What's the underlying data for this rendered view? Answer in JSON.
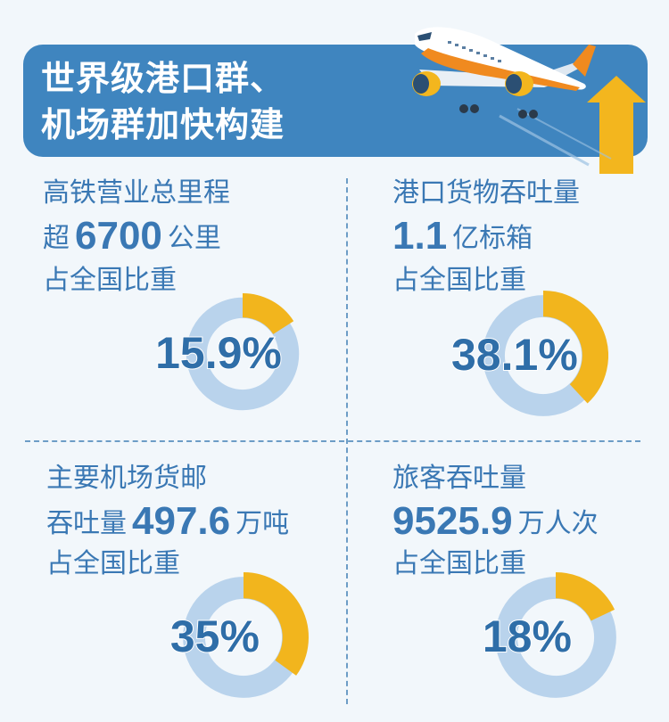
{
  "banner": {
    "title_line1": "世界级港口群、",
    "title_line2": "机场群加快构建"
  },
  "panels": [
    {
      "label": "高铁营业总里程",
      "prefix": "超",
      "number": "6700",
      "unit": "公里",
      "share_label": "占全国比重",
      "percent_text": "15.9%",
      "percent_value": 15.9
    },
    {
      "label": "港口货物吞吐量",
      "prefix": "",
      "number": "1.1",
      "unit": "亿标箱",
      "share_label": "占全国比重",
      "percent_text": "38.1%",
      "percent_value": 38.1
    },
    {
      "label": "主要机场货邮",
      "prefix": "吞吐量",
      "number": "497.6",
      "unit": "万吨",
      "share_label": "占全国比重",
      "percent_text": "35%",
      "percent_value": 35
    },
    {
      "label": "旅客吞吐量",
      "prefix": "",
      "number": "9525.9",
      "unit": "万人次",
      "share_label": "占全国比重",
      "percent_text": "18%",
      "percent_value": 18
    }
  ],
  "colors": {
    "banner": "#3f85bf",
    "text_blue": "#3a78b4",
    "ring_track": "#b9d3ec",
    "ring_fill": "#f2b51d"
  },
  "icons": [
    "airplane-illustration"
  ]
}
